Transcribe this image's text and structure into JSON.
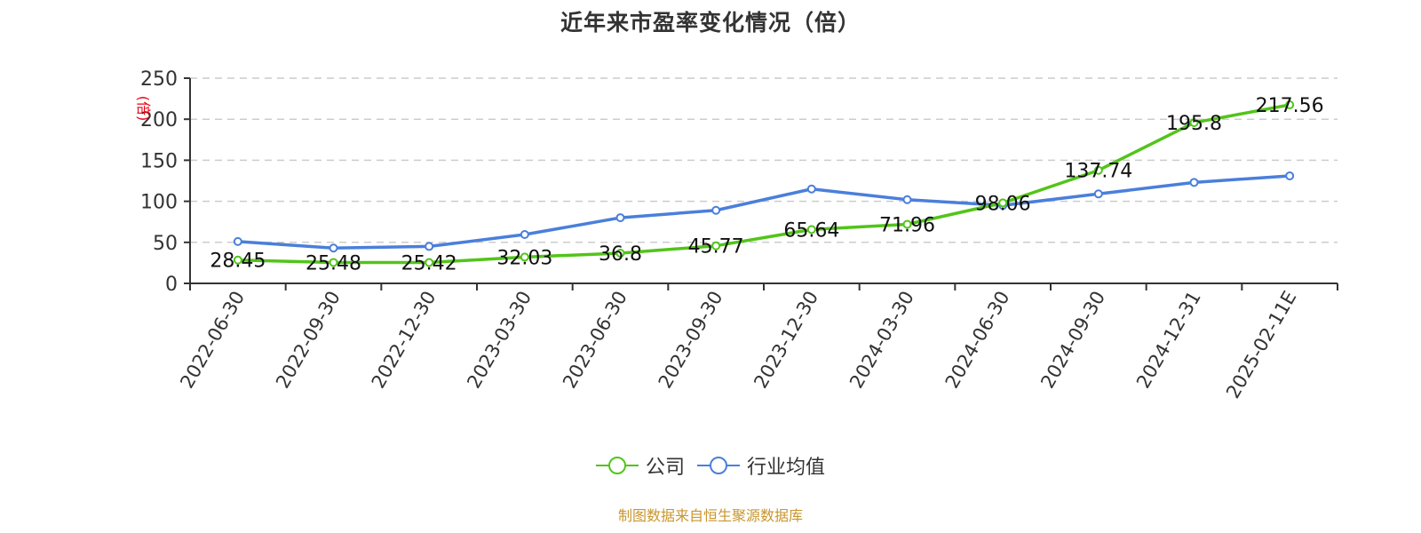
{
  "title": "近年来市盈率变化情况（倍）",
  "y_unit_label": "(倍)",
  "legend": [
    {
      "label": "公司",
      "color": "#52c41a"
    },
    {
      "label": "行业均值",
      "color": "#4a7fdb"
    }
  ],
  "footer": "制图数据来自恒生聚源数据库",
  "chart_data": {
    "type": "line",
    "title": "近年来市盈率变化情况（倍）",
    "xlabel": "",
    "ylabel": "(倍)",
    "ylim": [
      0,
      250
    ],
    "yticks": [
      0,
      50,
      100,
      150,
      200,
      250
    ],
    "grid": "horizontal dashed",
    "legend_position": "bottom",
    "categories": [
      "2022-06-30",
      "2022-09-30",
      "2022-12-30",
      "2023-03-30",
      "2023-06-30",
      "2023-09-30",
      "2023-12-30",
      "2024-03-30",
      "2024-06-30",
      "2024-09-30",
      "2024-12-31",
      "2025-02-11E"
    ],
    "series": [
      {
        "name": "公司",
        "color": "#52c41a",
        "labeled": true,
        "values": [
          28.45,
          25.48,
          25.42,
          32.03,
          36.8,
          45.77,
          65.64,
          71.96,
          98.06,
          137.74,
          195.8,
          217.56
        ]
      },
      {
        "name": "行业均值",
        "color": "#4a7fdb",
        "labeled": false,
        "values": [
          51,
          43,
          45,
          59.5,
          80,
          89,
          115,
          102,
          95,
          109,
          123,
          131
        ]
      }
    ]
  }
}
